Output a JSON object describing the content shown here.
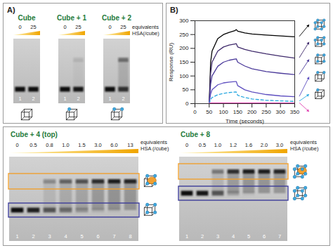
{
  "figure": {
    "panel_a": {
      "label": "A)",
      "axis_label": [
        "equivalents",
        "HSA(/cube)"
      ],
      "gels": [
        {
          "title": "Cube",
          "equivalents": [
            "0",
            "25"
          ],
          "lanes": [
            "1",
            "2"
          ],
          "bands": {
            "upper": [
              0,
              0
            ],
            "lower": [
              1,
              1
            ]
          }
        },
        {
          "title": "Cube + 1",
          "equivalents": [
            "0",
            "25"
          ],
          "lanes": [
            "1",
            "2"
          ],
          "bands": {
            "upper": [
              0,
              0.1
            ],
            "lower": [
              1,
              0.95
            ]
          }
        },
        {
          "title": "Cube + 2",
          "equivalents": [
            "0",
            "25"
          ],
          "lanes": [
            "1",
            "2"
          ],
          "bands": {
            "upper": [
              0,
              0.45
            ],
            "lower": [
              1,
              0.8
            ]
          }
        }
      ]
    },
    "panel_b": {
      "label": "B)"
    },
    "panel_c": {
      "gels": [
        {
          "title": "Cube + 4 (top)",
          "axis_label": [
            "equivalents",
            "HSA (/cube)"
          ],
          "equivalents": [
            "0",
            "0.5",
            "0.8",
            "1.0",
            "1.5",
            "3.0",
            "6.0",
            "13"
          ],
          "lanes": [
            "1",
            "2",
            "3",
            "4",
            "5",
            "6",
            "7",
            "8"
          ],
          "bands": {
            "upper": [
              0,
              0,
              0.3,
              0.5,
              0.6,
              0.8,
              0.9,
              0.85
            ],
            "lower": [
              1,
              0.9,
              0.6,
              0.45,
              0.25,
              0.1,
              0.05,
              0
            ]
          }
        },
        {
          "title": "Cube + 8",
          "axis_label": [
            "equivalents",
            "HSA (/cube)"
          ],
          "equivalents": [
            "0",
            "0.5",
            "1.0",
            "1.2",
            "1.6",
            "2.0",
            "3.0"
          ],
          "lanes": [
            "1",
            "2",
            "3",
            "4",
            "5",
            "6",
            "7"
          ],
          "bands": {
            "upper": [
              0,
              0,
              0.4,
              0.8,
              0.9,
              0.9,
              0.85
            ],
            "lower": [
              1,
              0.95,
              0.6,
              0.2,
              0.05,
              0,
              0
            ]
          }
        }
      ]
    }
  },
  "chart_data": {
    "type": "line",
    "x_label": "Time (seconds)",
    "y_label": "Response (RU)",
    "x": [
      50,
      55,
      60,
      80,
      100,
      120,
      140,
      145,
      150,
      175,
      200,
      250,
      300,
      350
    ],
    "series": [
      {
        "color": "#000000",
        "line_style": "solid",
        "values": [
          0,
          150,
          190,
          235,
          250,
          258,
          264,
          268,
          262,
          256,
          252,
          248,
          245,
          242
        ]
      },
      {
        "color": "#3f2a6b",
        "line_style": "solid",
        "values": [
          0,
          110,
          150,
          190,
          205,
          212,
          216,
          217,
          205,
          196,
          190,
          180,
          172,
          165
        ]
      },
      {
        "color": "#4b3a9a",
        "line_style": "solid",
        "values": [
          0,
          70,
          100,
          135,
          150,
          157,
          161,
          162,
          150,
          136,
          126,
          116,
          110,
          105
        ]
      },
      {
        "color": "#5e4fc0",
        "line_style": "solid",
        "values": [
          0,
          35,
          50,
          68,
          75,
          78,
          80,
          80,
          65,
          50,
          42,
          33,
          28,
          25
        ]
      },
      {
        "color": "#29a8e0",
        "line_style": "dashed",
        "values": [
          0,
          15,
          22,
          32,
          37,
          40,
          42,
          42,
          30,
          22,
          17,
          12,
          10,
          8
        ]
      },
      {
        "color": "#e040b0",
        "line_style": "solid",
        "values": [
          2,
          2,
          2,
          2,
          2,
          2,
          2,
          2,
          2,
          2,
          2,
          2,
          2,
          2
        ]
      }
    ],
    "xlim": [
      0,
      350
    ],
    "xticks": [
      0,
      50,
      100,
      150,
      200,
      250,
      300,
      350
    ],
    "ylim": [
      0,
      300
    ],
    "yticks": [
      0,
      50,
      100,
      150,
      200,
      250,
      300
    ],
    "grid": false
  }
}
